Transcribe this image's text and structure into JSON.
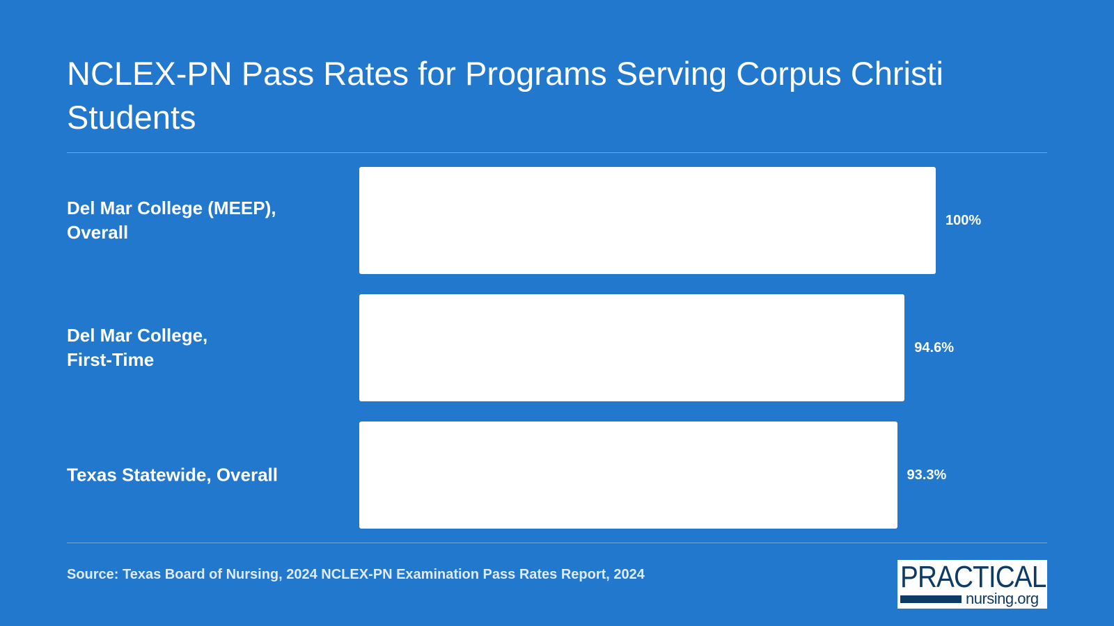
{
  "chart_data": {
    "type": "bar",
    "orientation": "horizontal",
    "title": "NCLEX-PN Pass Rates for Programs Serving Corpus Christi Students",
    "categories": [
      "Del Mar College (MEEP), Overall",
      "Del Mar College, First-Time",
      "Texas Statewide, Overall"
    ],
    "values": [
      100,
      94.6,
      93.3
    ],
    "value_labels": [
      "100%",
      "94.6%",
      "93.3%"
    ],
    "xlim": [
      0,
      100
    ],
    "grid": false,
    "legend": "none"
  },
  "source": "Source: Texas Board of Nursing, 2024 NCLEX-PN Examination Pass Rates Report, 2024",
  "logo": {
    "top": "PRACTICAL",
    "bottom": "nursing.org"
  },
  "colors": {
    "background": "#2178cc",
    "bar": "#ffffff",
    "text": "#ffffff",
    "logo_text": "#0e3a66"
  }
}
